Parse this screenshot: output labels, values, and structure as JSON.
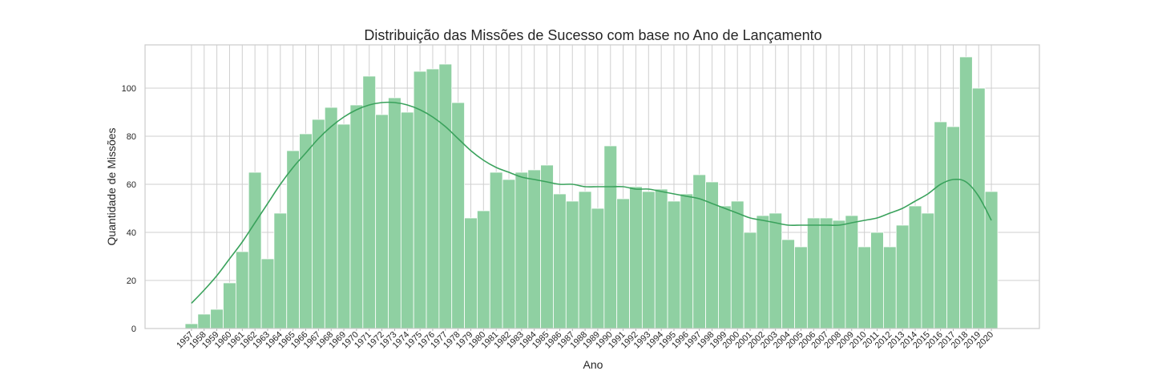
{
  "chart_data": {
    "type": "bar",
    "title": "Distribuição das Missões de Sucesso com base no Ano de Lançamento",
    "xlabel": "Ano",
    "ylabel": "Quantidade de Missões",
    "ylim": [
      0,
      118
    ],
    "yticks": [
      "0",
      "20",
      "40",
      "60",
      "80",
      "100"
    ],
    "grid": true,
    "kde_curve": true,
    "colors": {
      "bar_fill": "#8fd0a2",
      "bar_edge": "#ffffff",
      "kde_line": "#3aa25c",
      "grid": "#cfcfcf",
      "frame": "#cccccc"
    },
    "categories": [
      "1957",
      "1958",
      "1959",
      "1960",
      "1961",
      "1962",
      "1963",
      "1964",
      "1965",
      "1966",
      "1967",
      "1968",
      "1969",
      "1970",
      "1971",
      "1972",
      "1973",
      "1974",
      "1975",
      "1976",
      "1977",
      "1978",
      "1979",
      "1980",
      "1981",
      "1982",
      "1983",
      "1984",
      "1985",
      "1986",
      "1987",
      "1988",
      "1989",
      "1990",
      "1991",
      "1992",
      "1993",
      "1994",
      "1995",
      "1996",
      "1997",
      "1998",
      "1999",
      "2000",
      "2001",
      "2002",
      "2003",
      "2004",
      "2005",
      "2006",
      "2007",
      "2008",
      "2009",
      "2010",
      "2011",
      "2012",
      "2013",
      "2014",
      "2015",
      "2016",
      "2017",
      "2018",
      "2019",
      "2020"
    ],
    "values": [
      2,
      6,
      8,
      19,
      32,
      65,
      29,
      48,
      74,
      81,
      87,
      92,
      85,
      93,
      105,
      89,
      96,
      90,
      107,
      108,
      110,
      94,
      46,
      49,
      65,
      62,
      65,
      66,
      68,
      56,
      53,
      57,
      50,
      76,
      54,
      59,
      57,
      58,
      53,
      56,
      64,
      61,
      51,
      53,
      40,
      47,
      48,
      37,
      34,
      46,
      46,
      45,
      47,
      34,
      40,
      34,
      43,
      51,
      48,
      86,
      84,
      113,
      100,
      57
    ],
    "kde_values": [
      10.5,
      16,
      22,
      29,
      36,
      44,
      52,
      60,
      67,
      73,
      79,
      84,
      88,
      91,
      93,
      94,
      94,
      93,
      91,
      88,
      84,
      79,
      74,
      70,
      67,
      65,
      63,
      62,
      61,
      60,
      60,
      59,
      59,
      59,
      59,
      58,
      58,
      57,
      56,
      55,
      54,
      52,
      50,
      48,
      46,
      45,
      44,
      43,
      43,
      43,
      43,
      43,
      44,
      45,
      46,
      48,
      50,
      53,
      56,
      60,
      62,
      61,
      55,
      45
    ]
  }
}
